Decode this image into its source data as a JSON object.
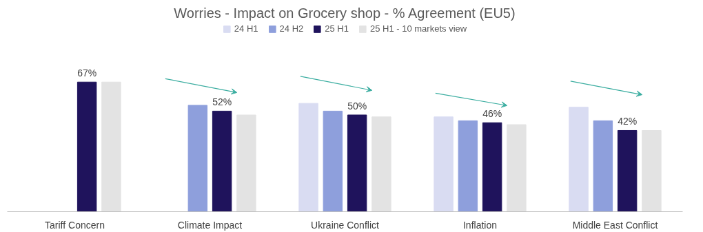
{
  "chart_data": {
    "type": "bar",
    "title": "Worries - Impact on Grocery shop - % Agreement (EU5)",
    "categories": [
      "Tariff Concern",
      "Climate Impact",
      "Ukraine Conflict",
      "Inflation",
      "Middle East Conflict"
    ],
    "series": [
      {
        "name": "24 H1",
        "color": "#d9dcf2",
        "values": [
          null,
          null,
          56,
          49,
          54
        ]
      },
      {
        "name": "24 H2",
        "color": "#8e9fdc",
        "values": [
          null,
          55,
          52,
          47,
          47
        ]
      },
      {
        "name": "25 H1",
        "color": "#1f135c",
        "values": [
          67,
          52,
          50,
          46,
          42
        ],
        "value_labels": [
          "67%",
          "52%",
          "50%",
          "46%",
          "42%"
        ]
      },
      {
        "name": "25 H1 - 10 markets view",
        "color": "#e3e3e3",
        "values": [
          67,
          50,
          49,
          45,
          42
        ]
      }
    ],
    "legend": "top"
  }
}
